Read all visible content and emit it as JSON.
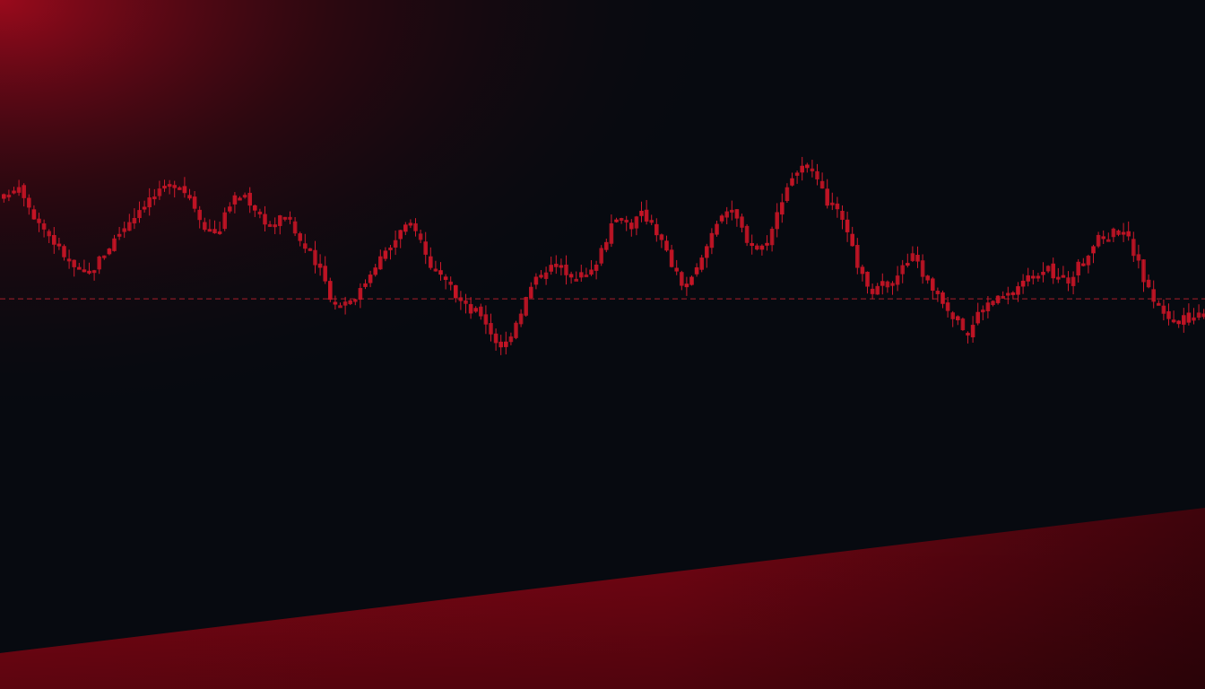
{
  "theme": {
    "background": "#070a10",
    "candle_color": "#c41425",
    "wick_color": "#d01a2c",
    "reference_line_color": "#b3202e",
    "glow_color": "#9a0a1c",
    "band_color": "#8e0717",
    "band_dark": "#3f040c"
  },
  "chart_data": {
    "type": "candlestick",
    "title": "",
    "xlabel": "",
    "ylabel": "",
    "grid": false,
    "legend": "none",
    "axes_visible": false,
    "ylim": [
      0,
      100
    ],
    "reference_line": {
      "value": 50.5,
      "style": "dashed"
    },
    "close_path": [
      [
        0,
        80
      ],
      [
        10,
        84
      ],
      [
        20,
        85
      ],
      [
        35,
        76
      ],
      [
        60,
        67
      ],
      [
        80,
        60
      ],
      [
        95,
        57
      ],
      [
        110,
        63
      ],
      [
        135,
        72
      ],
      [
        160,
        80
      ],
      [
        180,
        83
      ],
      [
        195,
        86
      ],
      [
        210,
        81
      ],
      [
        225,
        73
      ],
      [
        240,
        70
      ],
      [
        255,
        80
      ],
      [
        270,
        82
      ],
      [
        285,
        77
      ],
      [
        300,
        72
      ],
      [
        315,
        76
      ],
      [
        330,
        69
      ],
      [
        345,
        63
      ],
      [
        360,
        56
      ],
      [
        370,
        49
      ],
      [
        385,
        50
      ],
      [
        400,
        53
      ],
      [
        415,
        61
      ],
      [
        430,
        65
      ],
      [
        445,
        71
      ],
      [
        460,
        73
      ],
      [
        475,
        62
      ],
      [
        490,
        56
      ],
      [
        505,
        52
      ],
      [
        520,
        47
      ],
      [
        535,
        46
      ],
      [
        550,
        38
      ],
      [
        560,
        36
      ],
      [
        575,
        45
      ],
      [
        590,
        54
      ],
      [
        605,
        60
      ],
      [
        620,
        60
      ],
      [
        640,
        58
      ],
      [
        655,
        57
      ],
      [
        670,
        67
      ],
      [
        680,
        72
      ],
      [
        690,
        76
      ],
      [
        700,
        72
      ],
      [
        712,
        76
      ],
      [
        725,
        74
      ],
      [
        740,
        65
      ],
      [
        755,
        56
      ],
      [
        765,
        54
      ],
      [
        780,
        62
      ],
      [
        795,
        73
      ],
      [
        805,
        78
      ],
      [
        818,
        75
      ],
      [
        830,
        69
      ],
      [
        845,
        65
      ],
      [
        860,
        72
      ],
      [
        872,
        83
      ],
      [
        885,
        89
      ],
      [
        895,
        90
      ],
      [
        905,
        87
      ],
      [
        920,
        80
      ],
      [
        935,
        75
      ],
      [
        950,
        64
      ],
      [
        965,
        53
      ],
      [
        975,
        53
      ],
      [
        990,
        56
      ],
      [
        1005,
        60
      ],
      [
        1018,
        64
      ],
      [
        1030,
        56
      ],
      [
        1045,
        52
      ],
      [
        1055,
        48
      ],
      [
        1068,
        43
      ],
      [
        1078,
        40
      ],
      [
        1090,
        47
      ],
      [
        1105,
        50
      ],
      [
        1120,
        51
      ],
      [
        1135,
        55
      ],
      [
        1150,
        58
      ],
      [
        1162,
        60
      ],
      [
        1175,
        57
      ],
      [
        1190,
        56
      ],
      [
        1205,
        62
      ],
      [
        1220,
        68
      ],
      [
        1235,
        70
      ],
      [
        1250,
        72
      ],
      [
        1260,
        66
      ],
      [
        1270,
        59
      ],
      [
        1280,
        52
      ],
      [
        1295,
        47
      ],
      [
        1310,
        43
      ],
      [
        1325,
        45
      ],
      [
        1344,
        47
      ]
    ]
  }
}
